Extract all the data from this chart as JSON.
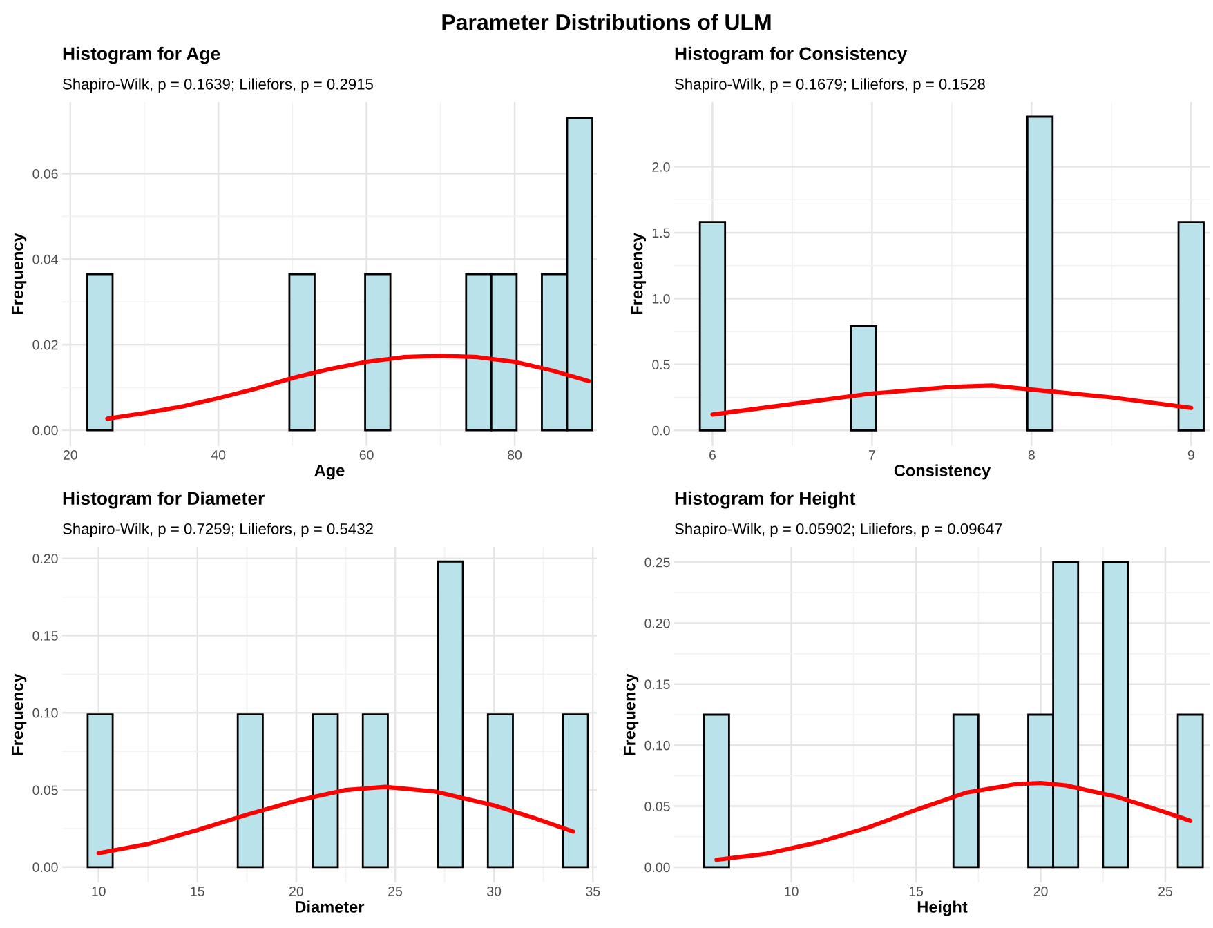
{
  "chart_data": [
    {
      "type": "histogram",
      "title": "Histogram for Age",
      "subtitle": "Shapiro-Wilk, p = 0.1639; Liliefors, p = 0.2915",
      "xlabel": "Age",
      "ylabel": "Frequency",
      "annotations": [
        "Parameter Distributions of ULM"
      ],
      "grid": true,
      "xlim": [
        18.9,
        91.1
      ],
      "ylim": [
        -0.0037,
        0.0767
      ],
      "xticks": [
        20,
        40,
        60,
        80
      ],
      "yticks": [
        {
          "value": 0,
          "label": "0.00"
        },
        {
          "value": 0.02,
          "label": "0.02"
        },
        {
          "value": 0.04,
          "label": "0.04"
        },
        {
          "value": 0.06,
          "label": "0.06"
        }
      ],
      "series": [
        {
          "type": "histogram",
          "color": "#b9e2ea",
          "bins": [
            22.3,
            25.71,
            29.12,
            32.53,
            35.94,
            39.35,
            42.76,
            46.17,
            49.58,
            52.99,
            56.4,
            59.81,
            63.22,
            66.63,
            70.04,
            73.45,
            76.86,
            80.27,
            83.68,
            87.09,
            90.5
          ],
          "values": [
            0.0365,
            0,
            0,
            0,
            0,
            0,
            0,
            0,
            0.0365,
            0,
            0,
            0.0365,
            0,
            0,
            0,
            0.0365,
            0.0365,
            0,
            0.0365,
            0.073
          ]
        },
        {
          "type": "line",
          "color": "#ff0000",
          "x": [
            25,
            30,
            35,
            40,
            45,
            50,
            55,
            60,
            65,
            70,
            75,
            80,
            85,
            90
          ],
          "values": [
            0.0027,
            0.004,
            0.0055,
            0.0075,
            0.0097,
            0.0122,
            0.0143,
            0.016,
            0.0171,
            0.0174,
            0.0171,
            0.016,
            0.014,
            0.0115
          ]
        }
      ]
    },
    {
      "type": "histogram",
      "title": "Histogram for Consistency",
      "subtitle": "Shapiro-Wilk, p = 0.1679; Liliefors, p = 0.1528",
      "xlabel": "Consistency",
      "ylabel": "Frequency",
      "grid": true,
      "xlim": [
        5.76,
        9.12
      ],
      "ylim": [
        -0.119,
        2.49
      ],
      "xticks": [
        6,
        7,
        8,
        9
      ],
      "yticks": [
        {
          "value": 0,
          "label": "0.0"
        },
        0.5,
        {
          "value": 1,
          "label": "1.0"
        },
        1.5,
        {
          "value": 2,
          "label": "2.0"
        }
      ],
      "series": [
        {
          "type": "histogram",
          "color": "#b9e2ea",
          "bins": [
            5.921,
            6.079,
            6.237,
            6.395,
            6.553,
            6.711,
            6.868,
            7.026,
            7.184,
            7.342,
            7.5,
            7.658,
            7.816,
            7.974,
            8.132,
            8.289,
            8.447,
            8.605,
            8.763,
            8.921,
            9.079
          ],
          "values": [
            1.58,
            0,
            0,
            0,
            0,
            0,
            0.79,
            0,
            0,
            0,
            0,
            0,
            0,
            2.38,
            0,
            0,
            0,
            0,
            0,
            1.58
          ]
        },
        {
          "type": "line",
          "color": "#ff0000",
          "x": [
            6,
            6.5,
            7,
            7.5,
            7.75,
            8,
            8.5,
            9
          ],
          "values": [
            0.12,
            0.2,
            0.28,
            0.33,
            0.34,
            0.31,
            0.25,
            0.17
          ]
        }
      ]
    },
    {
      "type": "histogram",
      "title": "Histogram for Diameter",
      "subtitle": "Shapiro-Wilk, p = 0.7259; Liliefors, p = 0.5432",
      "xlabel": "Diameter",
      "ylabel": "Frequency",
      "grid": true,
      "xlim": [
        8.16,
        35.2
      ],
      "ylim": [
        -0.0099,
        0.2075
      ],
      "xticks": [
        10,
        15,
        20,
        25,
        30,
        35
      ],
      "yticks": [
        {
          "value": 0,
          "label": "0.00"
        },
        {
          "value": 0.05,
          "label": "0.05"
        },
        {
          "value": 0.1,
          "label": "0.10"
        },
        {
          "value": 0.15,
          "label": "0.15"
        },
        {
          "value": 0.2,
          "label": "0.20"
        }
      ],
      "series": [
        {
          "type": "histogram",
          "color": "#b9e2ea",
          "bins": [
            9.45,
            10.715,
            11.98,
            13.245,
            14.51,
            15.775,
            17.04,
            18.305,
            19.57,
            20.835,
            22.1,
            23.365,
            24.63,
            25.895,
            27.16,
            28.425,
            29.69,
            30.955,
            32.22,
            33.485,
            34.75
          ],
          "values": [
            0.099,
            0,
            0,
            0,
            0,
            0,
            0.099,
            0,
            0,
            0.099,
            0,
            0.099,
            0,
            0,
            0.198,
            0,
            0.099,
            0,
            0,
            0.099
          ]
        },
        {
          "type": "line",
          "color": "#ff0000",
          "x": [
            10,
            12.5,
            15,
            17.5,
            20,
            22.5,
            24.5,
            27,
            30,
            32,
            34
          ],
          "values": [
            0.009,
            0.015,
            0.024,
            0.034,
            0.043,
            0.05,
            0.052,
            0.049,
            0.04,
            0.032,
            0.023
          ]
        }
      ]
    },
    {
      "type": "histogram",
      "title": "Histogram for Height",
      "subtitle": "Shapiro-Wilk, p = 0.05902; Liliefors, p = 0.09647",
      "xlabel": "Height",
      "ylabel": "Frequency",
      "grid": true,
      "xlim": [
        5.3,
        26.8
      ],
      "ylim": [
        -0.0125,
        0.2625
      ],
      "xticks": [
        10,
        15,
        20,
        25
      ],
      "yticks": [
        {
          "value": 0,
          "label": "0.00"
        },
        {
          "value": 0.05,
          "label": "0.05"
        },
        {
          "value": 0.1,
          "label": "0.10"
        },
        {
          "value": 0.15,
          "label": "0.15"
        },
        {
          "value": 0.2,
          "label": "0.20"
        },
        {
          "value": 0.25,
          "label": "0.25"
        }
      ],
      "series": [
        {
          "type": "histogram",
          "color": "#b9e2ea",
          "bins": [
            6.5,
            7.5,
            8.5,
            9.5,
            10.5,
            11.5,
            12.5,
            13.5,
            14.5,
            15.5,
            16.5,
            17.5,
            18.5,
            19.5,
            20.5,
            21.5,
            22.5,
            23.5,
            24.5,
            25.5,
            26.5
          ],
          "values": [
            0.125,
            0,
            0,
            0,
            0,
            0,
            0,
            0,
            0,
            0,
            0.125,
            0,
            0,
            0.125,
            0.25,
            0,
            0.25,
            0,
            0,
            0.125
          ]
        },
        {
          "type": "line",
          "color": "#ff0000",
          "x": [
            7,
            9,
            11,
            13,
            15,
            17,
            19,
            20,
            21,
            23,
            25,
            26
          ],
          "values": [
            0.006,
            0.011,
            0.02,
            0.032,
            0.047,
            0.061,
            0.068,
            0.069,
            0.067,
            0.058,
            0.045,
            0.038
          ]
        }
      ]
    }
  ]
}
